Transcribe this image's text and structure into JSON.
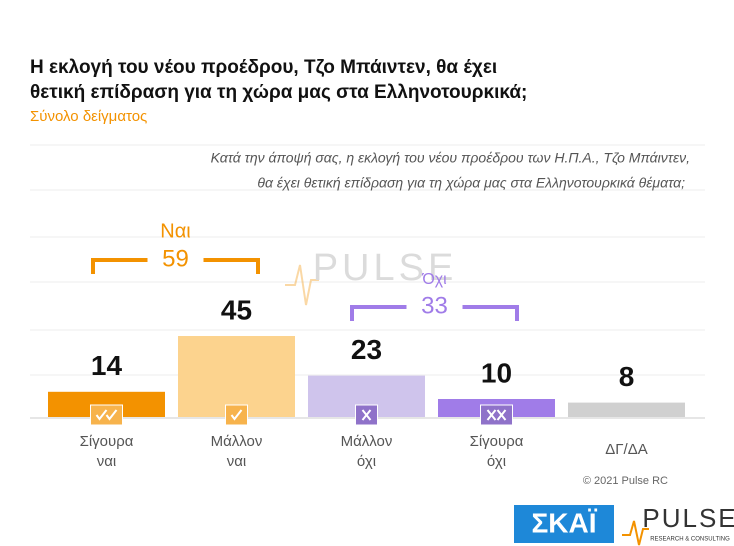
{
  "chart_data": {
    "type": "bar",
    "title": [
      "Η εκλογή του νέου προέδρου, Τζο Μπάιντεν, θα έχει",
      "θετική επίδραση για τη χώρα μας στα Ελληνοτουρκικά;"
    ],
    "subtitle": "Σύνολο δείγματος",
    "question": [
      "Κατά την άποψή σας, η εκλογή του νέου προέδρου των Η.Π.Α., Τζο Μπάιντεν,",
      "θα έχει θετική επίδραση για τη χώρα μας στα Ελληνοτουρκικά θέματα;"
    ],
    "categories": [
      [
        "Σίγουρα",
        "ναι"
      ],
      [
        "Μάλλον",
        "ναι"
      ],
      [
        "Μάλλον",
        "όχι"
      ],
      [
        "Σίγουρα",
        "όχι"
      ],
      [
        "ΔΓ/ΔΑ"
      ]
    ],
    "values": [
      14,
      45,
      23,
      10,
      8
    ],
    "colors": [
      "#f39200",
      "#fcd38e",
      "#cfc4ec",
      "#a07ce8",
      "#d0d0d0"
    ],
    "groups": [
      {
        "label": "Ναι",
        "value": 59,
        "color": "#f39200"
      },
      {
        "label": "Όχι",
        "value": 33,
        "color": "#a07ce8"
      }
    ],
    "watermark": "PULSE",
    "copyright": "© 2021 Pulse RC",
    "logos": {
      "skai": "ΣΚΑΪ",
      "pulse": "PULSE",
      "pulse_tagline": "RESEARCH & CONSULTING"
    }
  }
}
